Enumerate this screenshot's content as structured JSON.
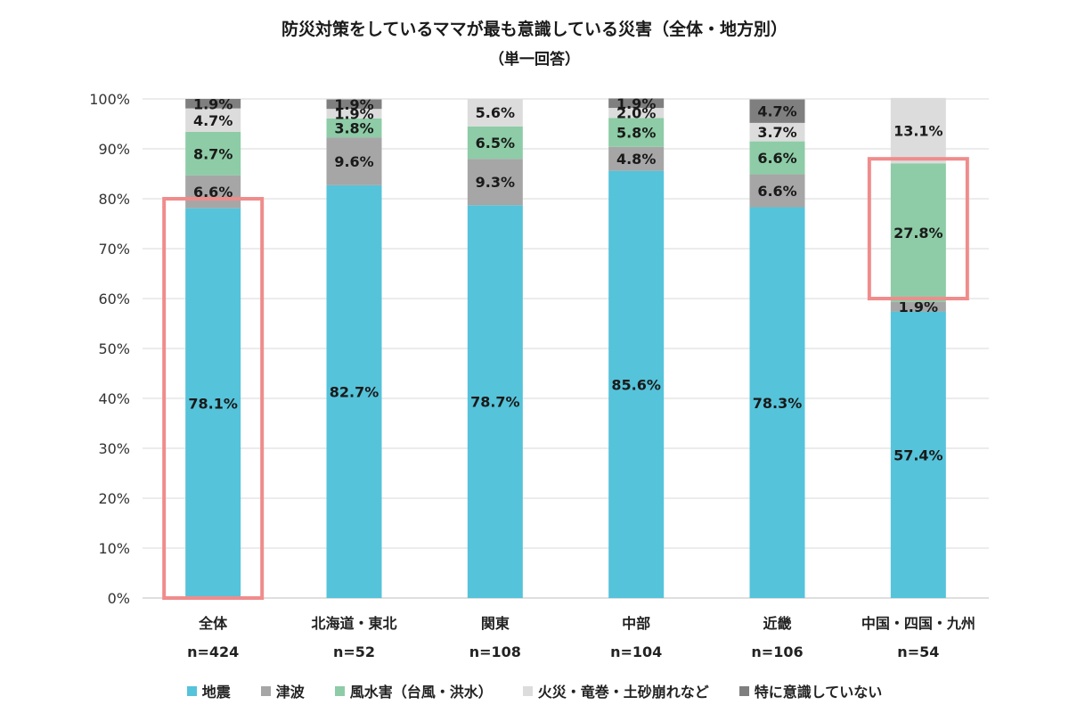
{
  "chart_data": {
    "type": "bar",
    "stacked": true,
    "title": "防災対策をしているママが最も意識している災害（全体・地方別）",
    "subtitle": "（単一回答）",
    "categories": [
      "全体",
      "北海道・東北",
      "関東",
      "中部",
      "近畿",
      "中国・四国・九州"
    ],
    "sample_sizes": [
      "n=424",
      "n=52",
      "n=108",
      "n=104",
      "n=106",
      "n=54"
    ],
    "ylim": [
      0,
      100
    ],
    "yticks": [
      "0%",
      "10%",
      "20%",
      "30%",
      "40%",
      "50%",
      "60%",
      "70%",
      "80%",
      "90%",
      "100%"
    ],
    "grid": true,
    "legend_position": "bottom",
    "series": [
      {
        "name": "地震",
        "color": "#55c3da",
        "values": [
          78.1,
          82.7,
          78.7,
          85.6,
          78.3,
          57.4
        ]
      },
      {
        "name": "津波",
        "color": "#a6a6a6",
        "values": [
          6.6,
          9.6,
          9.3,
          4.8,
          6.6,
          1.9
        ]
      },
      {
        "name": "風水害（台風・洪水）",
        "color": "#8dcca6",
        "values": [
          8.7,
          3.8,
          6.5,
          5.8,
          6.6,
          27.8
        ]
      },
      {
        "name": "火災・竜巻・土砂崩れなど",
        "color": "#dcdcdc",
        "values": [
          4.7,
          1.9,
          5.6,
          2.0,
          3.7,
          13.1
        ]
      },
      {
        "name": "特に意識していない",
        "color": "#7f7f7f",
        "values": [
          1.9,
          1.9,
          0,
          1.9,
          4.7,
          0
        ]
      }
    ],
    "labels": [
      [
        "78.1%",
        "82.7%",
        "78.7%",
        "85.6%",
        "78.3%",
        "57.4%"
      ],
      [
        "6.6%",
        "9.6%",
        "9.3%",
        "4.8%",
        "6.6%",
        "1.9%"
      ],
      [
        "8.7%",
        "3.8%",
        "6.5%",
        "5.8%",
        "6.6%",
        "27.8%"
      ],
      [
        "4.7%",
        "1.9%",
        "5.6%",
        "2.0%",
        "3.7%",
        "13.1%"
      ],
      [
        "1.9%",
        "1.9%",
        "",
        "1.9%",
        "4.7%",
        ""
      ]
    ],
    "highlights": [
      {
        "category_index": 0,
        "from": 0,
        "to": 80
      },
      {
        "category_index": 5,
        "from": 60,
        "to": 88
      }
    ],
    "highlight_color": "#f08c8c"
  }
}
